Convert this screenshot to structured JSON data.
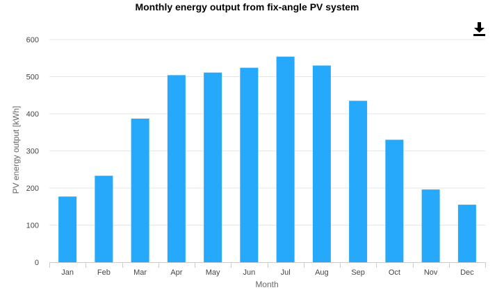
{
  "chart_data": {
    "type": "bar",
    "title": "Monthly energy output from fix-angle PV system",
    "xlabel": "Month",
    "ylabel": "PV energy output [kWh]",
    "categories": [
      "Jan",
      "Feb",
      "Mar",
      "Apr",
      "May",
      "Jun",
      "Jul",
      "Aug",
      "Sep",
      "Oct",
      "Nov",
      "Dec"
    ],
    "values": [
      177,
      233,
      387,
      504,
      511,
      524,
      554,
      530,
      435,
      330,
      196,
      155
    ],
    "ylim": [
      0,
      600
    ],
    "yticks": [
      0,
      100,
      200,
      300,
      400,
      500,
      600
    ],
    "grid": true,
    "legend": "none",
    "colors": {
      "bar": "#26a9fb",
      "grid": "#e6e6e6",
      "axis": "#cccccc",
      "tick_text": "#444444",
      "label_text": "#666666"
    }
  },
  "toolbar": {
    "download_icon": "download-icon"
  }
}
